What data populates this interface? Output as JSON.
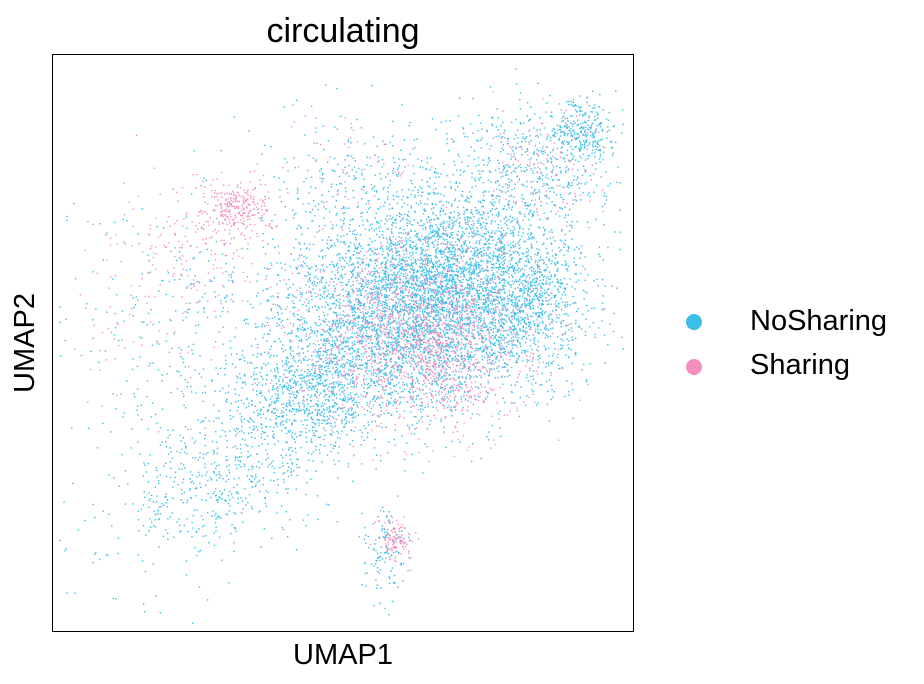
{
  "chart_data": {
    "type": "scatter",
    "title": "circulating",
    "xlabel": "UMAP1",
    "ylabel": "UMAP2",
    "xticks": [],
    "yticks": [],
    "xlim": [
      0,
      100
    ],
    "ylim": [
      0,
      100
    ],
    "grid": false,
    "legend_position": "right",
    "series": [
      {
        "name": "NoSharing",
        "color": "#3bbfe8",
        "clusters": [
          {
            "center": [
              66,
              57
            ],
            "spread": [
              11,
              9
            ],
            "count": 2600
          },
          {
            "center": [
              56,
              54
            ],
            "spread": [
              9,
              9
            ],
            "count": 1600
          },
          {
            "center": [
              70,
              62
            ],
            "spread": [
              6,
              8
            ],
            "count": 900
          },
          {
            "center": [
              82,
              58
            ],
            "spread": [
              5,
              7
            ],
            "count": 800
          },
          {
            "center": [
              45,
              42
            ],
            "spread": [
              6,
              5
            ],
            "count": 500
          },
          {
            "center": [
              40,
              37
            ],
            "spread": [
              6,
              6
            ],
            "count": 350
          },
          {
            "center": [
              30,
              27
            ],
            "spread": [
              7,
              5
            ],
            "count": 220
          },
          {
            "center": [
              23,
              24
            ],
            "spread": [
              5,
              5
            ],
            "count": 120
          },
          {
            "center": [
              82,
              80
            ],
            "spread": [
              7,
              6
            ],
            "count": 500
          },
          {
            "center": [
              91,
              86
            ],
            "spread": [
              3,
              3
            ],
            "count": 280
          },
          {
            "center": [
              52,
              78
            ],
            "spread": [
              8,
              6
            ],
            "count": 240
          },
          {
            "center": [
              57,
              14
            ],
            "spread": [
              2,
              4
            ],
            "count": 120
          },
          {
            "center": [
              25,
              50
            ],
            "spread": [
              13,
              13
            ],
            "count": 420
          },
          {
            "center": [
              15,
              18
            ],
            "spread": [
              9,
              8
            ],
            "count": 80
          }
        ]
      },
      {
        "name": "Sharing",
        "color": "#f58fbf",
        "clusters": [
          {
            "center": [
              62,
              52
            ],
            "spread": [
              10,
              8
            ],
            "count": 1200
          },
          {
            "center": [
              68,
              47
            ],
            "spread": [
              5,
              6
            ],
            "count": 300
          },
          {
            "center": [
              32,
              73
            ],
            "spread": [
              3,
              2.5
            ],
            "count": 260
          },
          {
            "center": [
              23,
              66
            ],
            "spread": [
              7,
              6
            ],
            "count": 160
          },
          {
            "center": [
              59,
              16
            ],
            "spread": [
              1.5,
              1.7
            ],
            "count": 110
          },
          {
            "center": [
              85,
              80
            ],
            "spread": [
              5,
              5
            ],
            "count": 110
          },
          {
            "center": [
              52,
              80
            ],
            "spread": [
              7,
              6
            ],
            "count": 50
          },
          {
            "center": [
              15,
              56
            ],
            "spread": [
              7,
              9
            ],
            "count": 60
          }
        ]
      }
    ]
  }
}
